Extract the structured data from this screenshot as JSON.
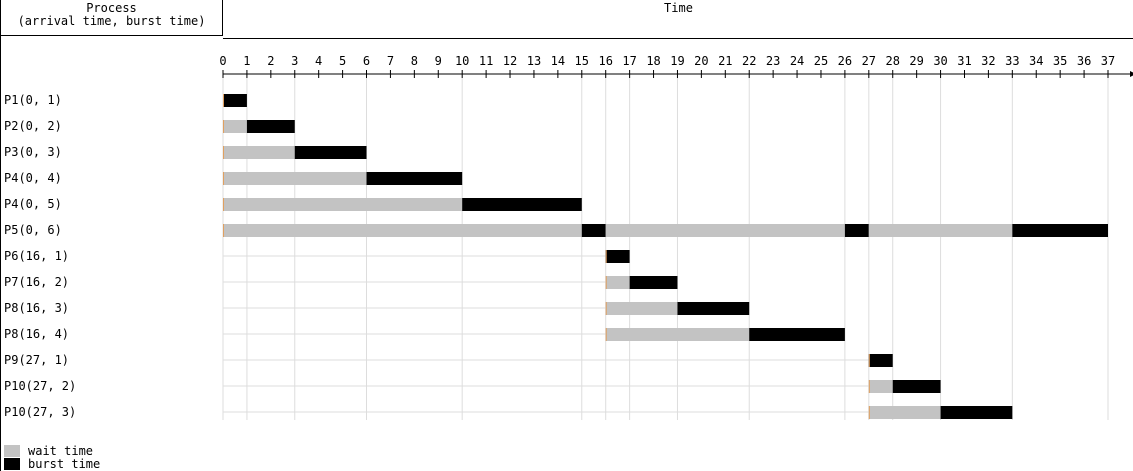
{
  "header": {
    "process_title": "Process",
    "process_subtitle": "(arrival time, burst time)",
    "time_title": "Time"
  },
  "chart_data": {
    "type": "gantt",
    "xlim": [
      0,
      37
    ],
    "ticks": [
      0,
      1,
      2,
      3,
      4,
      5,
      6,
      7,
      8,
      9,
      10,
      11,
      12,
      13,
      14,
      15,
      16,
      17,
      18,
      19,
      20,
      21,
      22,
      23,
      24,
      25,
      26,
      27,
      28,
      29,
      30,
      31,
      32,
      33,
      34,
      35,
      36,
      37
    ],
    "colors": {
      "wait": "#c3c3c3",
      "burst": "#000000",
      "arrival_marker": "#e0a060",
      "grid": "#dddddd"
    },
    "legend": [
      {
        "label": "wait time",
        "kind": "wait"
      },
      {
        "label": "burst time",
        "kind": "burst"
      }
    ],
    "rows": [
      {
        "label": "P1(0, 1)",
        "arrival": 0,
        "segments": [
          {
            "kind": "burst",
            "start": 0,
            "end": 1
          }
        ]
      },
      {
        "label": "P2(0, 2)",
        "arrival": 0,
        "segments": [
          {
            "kind": "wait",
            "start": 0,
            "end": 1
          },
          {
            "kind": "burst",
            "start": 1,
            "end": 3
          }
        ]
      },
      {
        "label": "P3(0, 3)",
        "arrival": 0,
        "segments": [
          {
            "kind": "wait",
            "start": 0,
            "end": 3
          },
          {
            "kind": "burst",
            "start": 3,
            "end": 6
          }
        ]
      },
      {
        "label": "P4(0, 4)",
        "arrival": 0,
        "segments": [
          {
            "kind": "wait",
            "start": 0,
            "end": 6
          },
          {
            "kind": "burst",
            "start": 6,
            "end": 10
          }
        ]
      },
      {
        "label": "P4(0, 5)",
        "arrival": 0,
        "segments": [
          {
            "kind": "wait",
            "start": 0,
            "end": 10
          },
          {
            "kind": "burst",
            "start": 10,
            "end": 15
          }
        ]
      },
      {
        "label": "P5(0, 6)",
        "arrival": 0,
        "segments": [
          {
            "kind": "wait",
            "start": 0,
            "end": 15
          },
          {
            "kind": "burst",
            "start": 15,
            "end": 16
          },
          {
            "kind": "wait",
            "start": 16,
            "end": 26
          },
          {
            "kind": "burst",
            "start": 26,
            "end": 27
          },
          {
            "kind": "wait",
            "start": 27,
            "end": 33
          },
          {
            "kind": "burst",
            "start": 33,
            "end": 37
          }
        ]
      },
      {
        "label": "P6(16, 1)",
        "arrival": 16,
        "segments": [
          {
            "kind": "burst",
            "start": 16,
            "end": 17
          }
        ]
      },
      {
        "label": "P7(16, 2)",
        "arrival": 16,
        "segments": [
          {
            "kind": "wait",
            "start": 16,
            "end": 17
          },
          {
            "kind": "burst",
            "start": 17,
            "end": 19
          }
        ]
      },
      {
        "label": "P8(16, 3)",
        "arrival": 16,
        "segments": [
          {
            "kind": "wait",
            "start": 16,
            "end": 19
          },
          {
            "kind": "burst",
            "start": 19,
            "end": 22
          }
        ]
      },
      {
        "label": "P8(16, 4)",
        "arrival": 16,
        "segments": [
          {
            "kind": "wait",
            "start": 16,
            "end": 22
          },
          {
            "kind": "burst",
            "start": 22,
            "end": 26
          }
        ]
      },
      {
        "label": "P9(27, 1)",
        "arrival": 27,
        "segments": [
          {
            "kind": "burst",
            "start": 27,
            "end": 28
          }
        ]
      },
      {
        "label": "P10(27, 2)",
        "arrival": 27,
        "segments": [
          {
            "kind": "wait",
            "start": 27,
            "end": 28
          },
          {
            "kind": "burst",
            "start": 28,
            "end": 30
          }
        ]
      },
      {
        "label": "P10(27, 3)",
        "arrival": 27,
        "segments": [
          {
            "kind": "wait",
            "start": 27,
            "end": 30
          },
          {
            "kind": "burst",
            "start": 30,
            "end": 33
          }
        ]
      }
    ]
  }
}
